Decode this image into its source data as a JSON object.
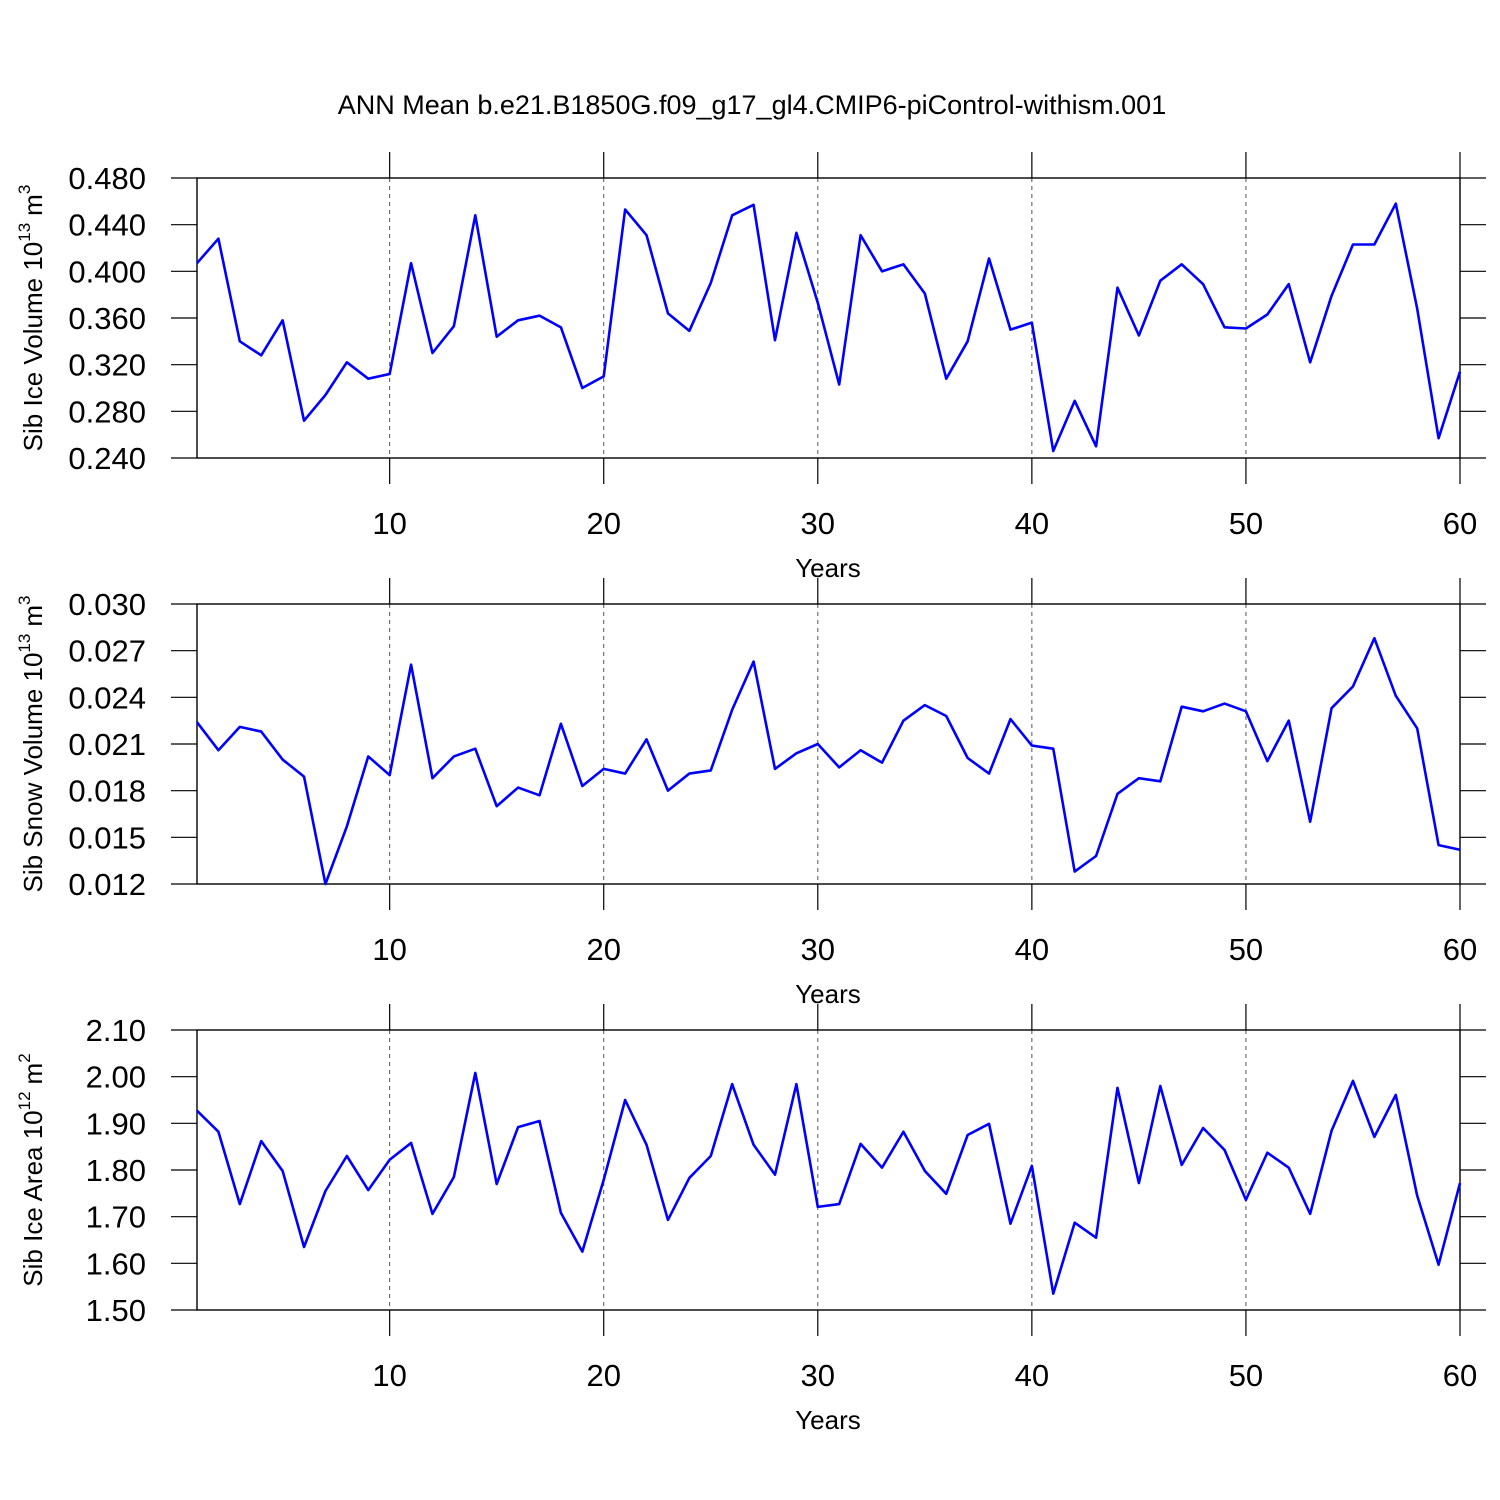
{
  "title": "ANN Mean b.e21.B1850G.f09_g17_gl4.CMIP6-piControl-withism.001",
  "chart_data": [
    {
      "type": "line",
      "xlabel": "Years",
      "ylabel": {
        "text": "Sib Ice Volume 10",
        "exp": "13",
        "unit": "m",
        "unit_exp": "3"
      },
      "x": [
        1,
        2,
        3,
        4,
        5,
        6,
        7,
        8,
        9,
        10,
        11,
        12,
        13,
        14,
        15,
        16,
        17,
        18,
        19,
        20,
        21,
        22,
        23,
        24,
        25,
        26,
        27,
        28,
        29,
        30,
        31,
        32,
        33,
        34,
        35,
        36,
        37,
        38,
        39,
        40,
        41,
        42,
        43,
        44,
        45,
        46,
        47,
        48,
        49,
        50,
        51,
        52,
        53,
        54,
        55,
        56,
        57,
        58,
        59,
        60
      ],
      "series": [
        {
          "color": "#0000ff",
          "values": [
            0.407,
            0.428,
            0.34,
            0.328,
            0.358,
            0.272,
            0.294,
            0.322,
            0.308,
            0.312,
            0.407,
            0.33,
            0.353,
            0.448,
            0.344,
            0.358,
            0.362,
            0.352,
            0.3,
            0.31,
            0.453,
            0.431,
            0.364,
            0.349,
            0.39,
            0.448,
            0.457,
            0.341,
            0.433,
            0.373,
            0.303,
            0.431,
            0.4,
            0.406,
            0.381,
            0.308,
            0.34,
            0.411,
            0.35,
            0.356,
            0.246,
            0.289,
            0.25,
            0.386,
            0.345,
            0.392,
            0.406,
            0.389,
            0.352,
            0.351,
            0.363,
            0.389,
            0.322,
            0.379,
            0.423,
            0.423,
            0.458,
            0.368,
            0.257,
            0.314
          ]
        }
      ],
      "xlim": [
        1,
        60
      ],
      "xticks": [
        10,
        20,
        30,
        40,
        50,
        60
      ],
      "ylim": [
        0.24,
        0.48
      ],
      "yticks": [
        {
          "value": 0.24,
          "label": "0.240"
        },
        {
          "value": 0.28,
          "label": "0.280"
        },
        {
          "value": 0.32,
          "label": "0.320"
        },
        {
          "value": 0.36,
          "label": "0.360"
        },
        {
          "value": 0.4,
          "label": "0.400"
        },
        {
          "value": 0.44,
          "label": "0.440"
        },
        {
          "value": 0.48,
          "label": "0.480"
        }
      ],
      "grid": "x"
    },
    {
      "type": "line",
      "xlabel": "Years",
      "ylabel": {
        "text": "Sib Snow Volume 10",
        "exp": "13",
        "unit": "m",
        "unit_exp": "3"
      },
      "x": [
        1,
        2,
        3,
        4,
        5,
        6,
        7,
        8,
        9,
        10,
        11,
        12,
        13,
        14,
        15,
        16,
        17,
        18,
        19,
        20,
        21,
        22,
        23,
        24,
        25,
        26,
        27,
        28,
        29,
        30,
        31,
        32,
        33,
        34,
        35,
        36,
        37,
        38,
        39,
        40,
        41,
        42,
        43,
        44,
        45,
        46,
        47,
        48,
        49,
        50,
        51,
        52,
        53,
        54,
        55,
        56,
        57,
        58,
        59,
        60
      ],
      "series": [
        {
          "color": "#0000ff",
          "values": [
            0.0224,
            0.0206,
            0.0221,
            0.0218,
            0.02,
            0.0189,
            0.012,
            0.0157,
            0.0202,
            0.019,
            0.0261,
            0.0188,
            0.0202,
            0.0207,
            0.017,
            0.0182,
            0.0177,
            0.0223,
            0.0183,
            0.0194,
            0.0191,
            0.0213,
            0.018,
            0.0191,
            0.0193,
            0.0232,
            0.0263,
            0.0194,
            0.0204,
            0.021,
            0.0195,
            0.0206,
            0.0198,
            0.0225,
            0.0235,
            0.0228,
            0.0201,
            0.0191,
            0.0226,
            0.0209,
            0.0207,
            0.0128,
            0.0138,
            0.0178,
            0.0188,
            0.0186,
            0.0234,
            0.0231,
            0.0236,
            0.0231,
            0.0199,
            0.0225,
            0.016,
            0.0233,
            0.0247,
            0.0278,
            0.0241,
            0.022,
            0.0145,
            0.0142
          ]
        }
      ],
      "xlim": [
        1,
        60
      ],
      "xticks": [
        10,
        20,
        30,
        40,
        50,
        60
      ],
      "ylim": [
        0.012,
        0.03
      ],
      "yticks": [
        {
          "value": 0.012,
          "label": "0.012"
        },
        {
          "value": 0.015,
          "label": "0.015"
        },
        {
          "value": 0.018,
          "label": "0.018"
        },
        {
          "value": 0.021,
          "label": "0.021"
        },
        {
          "value": 0.024,
          "label": "0.024"
        },
        {
          "value": 0.027,
          "label": "0.027"
        },
        {
          "value": 0.03,
          "label": "0.030"
        }
      ],
      "grid": "x"
    },
    {
      "type": "line",
      "xlabel": "Years",
      "ylabel": {
        "text": "Sib Ice Area 10",
        "exp": "12",
        "unit": "m",
        "unit_exp": "2"
      },
      "x": [
        1,
        2,
        3,
        4,
        5,
        6,
        7,
        8,
        9,
        10,
        11,
        12,
        13,
        14,
        15,
        16,
        17,
        18,
        19,
        20,
        21,
        22,
        23,
        24,
        25,
        26,
        27,
        28,
        29,
        30,
        31,
        32,
        33,
        34,
        35,
        36,
        37,
        38,
        39,
        40,
        41,
        42,
        43,
        44,
        45,
        46,
        47,
        48,
        49,
        50,
        51,
        52,
        53,
        54,
        55,
        56,
        57,
        58,
        59,
        60
      ],
      "series": [
        {
          "color": "#0000ff",
          "values": [
            1.927,
            1.882,
            1.727,
            1.862,
            1.798,
            1.635,
            1.755,
            1.83,
            1.757,
            1.822,
            1.858,
            1.706,
            1.785,
            2.008,
            1.77,
            1.892,
            1.905,
            1.708,
            1.625,
            1.779,
            1.95,
            1.854,
            1.693,
            1.783,
            1.83,
            1.984,
            1.854,
            1.79,
            1.984,
            1.721,
            1.727,
            1.856,
            1.805,
            1.882,
            1.798,
            1.749,
            1.875,
            1.899,
            1.685,
            1.809,
            1.535,
            1.687,
            1.655,
            1.976,
            1.772,
            1.98,
            1.811,
            1.89,
            1.843,
            1.736,
            1.837,
            1.805,
            1.706,
            1.884,
            1.991,
            1.871,
            1.961,
            1.745,
            1.597,
            1.772
          ]
        }
      ],
      "xlim": [
        1,
        60
      ],
      "xticks": [
        10,
        20,
        30,
        40,
        50,
        60
      ],
      "ylim": [
        1.5,
        2.1
      ],
      "yticks": [
        {
          "value": 1.5,
          "label": "1.50"
        },
        {
          "value": 1.6,
          "label": "1.60"
        },
        {
          "value": 1.7,
          "label": "1.70"
        },
        {
          "value": 1.8,
          "label": "1.80"
        },
        {
          "value": 1.9,
          "label": "1.90"
        },
        {
          "value": 2.0,
          "label": "2.00"
        },
        {
          "value": 2.1,
          "label": "2.10"
        }
      ],
      "grid": "x"
    }
  ]
}
